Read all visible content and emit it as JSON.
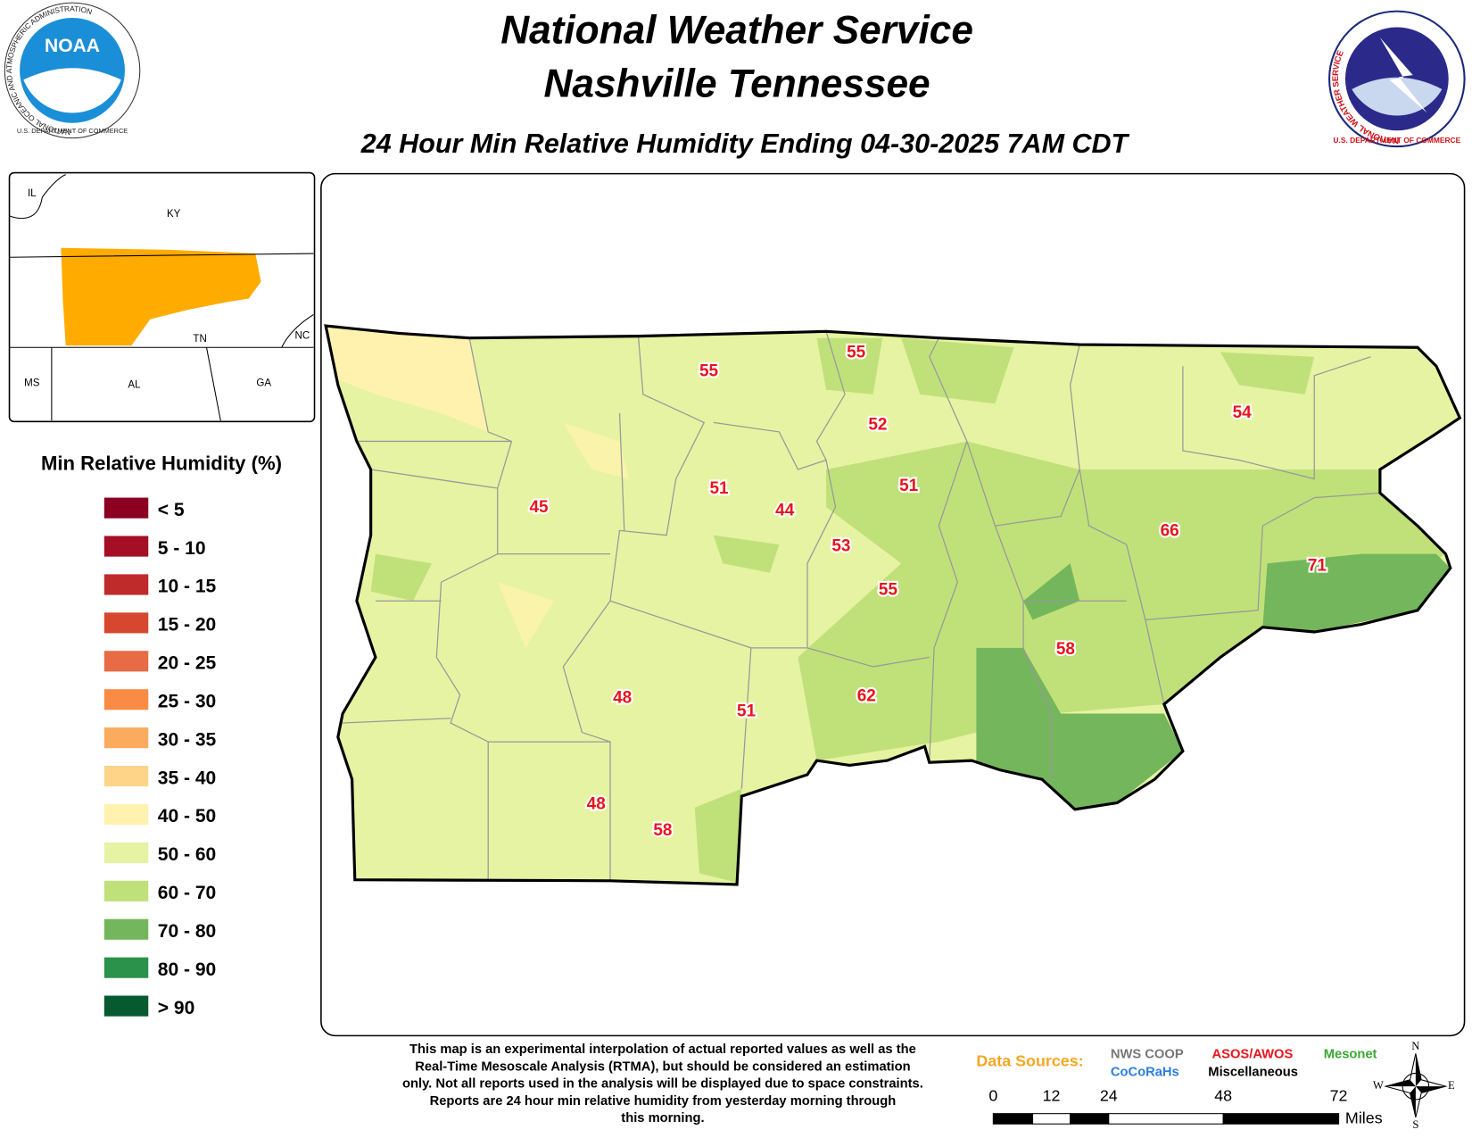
{
  "header": {
    "title": "National Weather Service",
    "office": "Nashville Tennessee",
    "subtitle": "24 Hour Min Relative Humidity Ending 04-30-2025 7AM CDT"
  },
  "logos": {
    "noaa_name": "NOAA",
    "noaa_ring": "NATIONAL OCEANIC AND ATMOSPHERIC ADMINISTRATION",
    "noaa_dept": "U.S. DEPARTMENT OF COMMERCE",
    "nws_ring": "NATIONAL WEATHER SERVICE",
    "nws_dept": "U.S. DEPARTMENT OF COMMERCE"
  },
  "inset": {
    "labels": [
      "IL",
      "KY",
      "TN",
      "NC",
      "MS",
      "AL",
      "GA"
    ]
  },
  "legend": {
    "title": "Min Relative Humidity (%)",
    "items": [
      {
        "label": "< 5",
        "color": "#8b0021"
      },
      {
        "label": "5 - 10",
        "color": "#a50f26"
      },
      {
        "label": "10 - 15",
        "color": "#bf2a2b"
      },
      {
        "label": "15 - 20",
        "color": "#d5482f"
      },
      {
        "label": "20 - 25",
        "color": "#e76b44"
      },
      {
        "label": "25 - 30",
        "color": "#fa8b45"
      },
      {
        "label": "30 - 35",
        "color": "#fbab5e"
      },
      {
        "label": "35 - 40",
        "color": "#fed489"
      },
      {
        "label": "40 - 50",
        "color": "#fff2af"
      },
      {
        "label": "50 - 60",
        "color": "#e6f3a2"
      },
      {
        "label": "60 - 70",
        "color": "#c0e17a"
      },
      {
        "label": "70 - 80",
        "color": "#74b65c"
      },
      {
        "label": "80 - 90",
        "color": "#2a924a"
      },
      {
        "label": "> 90",
        "color": "#075a2f"
      }
    ]
  },
  "stations": [
    "55",
    "55",
    "52",
    "54",
    "45",
    "51",
    "44",
    "51",
    "53",
    "66",
    "71",
    "55",
    "58",
    "48",
    "62",
    "51",
    "48",
    "58"
  ],
  "footnote": [
    "This map is an experimental interpolation of actual reported values as well as the",
    "Real-Time Mesoscale Analysis (RTMA), but should be considered an estimation",
    "only. Not all reports used in the analysis will be displayed due to space constraints.",
    "Reports are 24 hour min relative humidity from yesterday morning through",
    "this morning."
  ],
  "sources": {
    "title": "Data Sources:",
    "items": [
      {
        "label": "NWS COOP",
        "color": "#777777"
      },
      {
        "label": "CoCoRaHs",
        "color": "#2a7de1"
      },
      {
        "label": "ASOS/AWOS",
        "color": "#e8141b"
      },
      {
        "label": "Miscellaneous",
        "color": "#000000"
      },
      {
        "label": "Mesonet",
        "color": "#3aa832"
      }
    ]
  },
  "scale": {
    "ticks": [
      "0",
      "12",
      "24",
      "48",
      "72"
    ],
    "unit": "Miles"
  },
  "compass": [
    "N",
    "E",
    "S",
    "W"
  ]
}
